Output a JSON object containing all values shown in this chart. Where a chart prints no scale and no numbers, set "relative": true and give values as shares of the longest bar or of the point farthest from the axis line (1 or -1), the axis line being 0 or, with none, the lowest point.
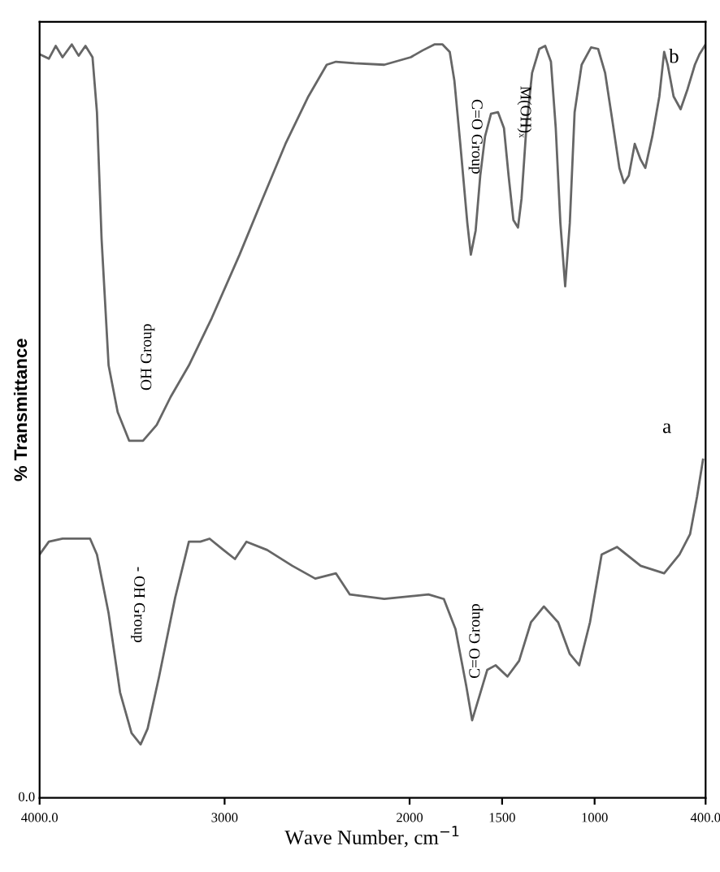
{
  "chart_data": {
    "type": "line",
    "relative": true,
    "xlabel": "Wave Number, cm$^{−1}$",
    "ylabel": "% Transmittance",
    "xlim": [
      4000,
      400
    ],
    "xticks": [
      {
        "value": 4000,
        "label": "4000.0"
      },
      3000,
      2000,
      1500,
      1000,
      {
        "value": 400,
        "label": "400.0"
      }
    ],
    "grid": false,
    "legend": false,
    "marker": "none",
    "line_style": "solid",
    "series": [
      {
        "name": "b",
        "color": "#666666",
        "x": [
          4000,
          3950,
          3913,
          3876,
          3826,
          3789,
          3752,
          3714,
          3690,
          3665,
          3627,
          3578,
          3516,
          3441,
          3367,
          3292,
          3193,
          3069,
          2919,
          2795,
          2671,
          2547,
          2448,
          2398,
          2298,
          2137,
          1994,
          1930,
          1866,
          1822,
          1783,
          1758,
          1726,
          1688,
          1669,
          1643,
          1618,
          1592,
          1560,
          1522,
          1490,
          1465,
          1439,
          1414,
          1395,
          1369,
          1338,
          1299,
          1267,
          1236,
          1210,
          1185,
          1159,
          1134,
          1108,
          1070,
          1019,
          981,
          943,
          904,
          866,
          841,
          815,
          783,
          751,
          726,
          688,
          650,
          624,
          605,
          573,
          535,
          497,
          458,
          433,
          400
        ],
        "values": [
          0.987,
          0.981,
          0.998,
          0.983,
          1.0,
          0.985,
          0.998,
          0.983,
          0.91,
          0.742,
          0.574,
          0.512,
          0.474,
          0.474,
          0.495,
          0.532,
          0.574,
          0.637,
          0.721,
          0.795,
          0.868,
          0.931,
          0.973,
          0.977,
          0.975,
          0.973,
          0.983,
          0.992,
          1.0,
          1.0,
          0.99,
          0.952,
          0.868,
          0.763,
          0.721,
          0.753,
          0.826,
          0.878,
          0.908,
          0.91,
          0.889,
          0.826,
          0.767,
          0.757,
          0.795,
          0.889,
          0.962,
          0.994,
          0.998,
          0.977,
          0.889,
          0.763,
          0.679,
          0.763,
          0.91,
          0.973,
          0.996,
          0.994,
          0.962,
          0.899,
          0.836,
          0.816,
          0.826,
          0.868,
          0.847,
          0.836,
          0.878,
          0.931,
          0.99,
          0.973,
          0.931,
          0.914,
          0.941,
          0.973,
          0.987,
          1.0
        ]
      },
      {
        "name": "a",
        "color": "#666666",
        "x": [
          4000,
          3950,
          3876,
          3789,
          3727,
          3690,
          3627,
          3565,
          3503,
          3454,
          3416,
          3354,
          3267,
          3193,
          3131,
          3081,
          3006,
          2944,
          2882,
          2770,
          2634,
          2510,
          2398,
          2323,
          2137,
          1898,
          1815,
          1752,
          1694,
          1662,
          1624,
          1580,
          1535,
          1471,
          1408,
          1344,
          1274,
          1197,
          1134,
          1083,
          1025,
          962,
          879,
          751,
          624,
          541,
          484,
          446,
          414
        ],
        "values": [
          0.323,
          0.34,
          0.344,
          0.344,
          0.344,
          0.323,
          0.245,
          0.14,
          0.086,
          0.071,
          0.092,
          0.161,
          0.266,
          0.34,
          0.34,
          0.344,
          0.329,
          0.317,
          0.34,
          0.329,
          0.308,
          0.291,
          0.298,
          0.27,
          0.264,
          0.27,
          0.264,
          0.224,
          0.149,
          0.103,
          0.134,
          0.17,
          0.176,
          0.161,
          0.182,
          0.233,
          0.254,
          0.233,
          0.191,
          0.176,
          0.233,
          0.323,
          0.333,
          0.308,
          0.298,
          0.323,
          0.35,
          0.4,
          0.449
        ]
      }
    ],
    "annotations": [
      "OH Group",
      "C=O Group",
      "M(OH)ₓ",
      "- OH Group",
      "C=O Group",
      "0.0"
    ]
  }
}
